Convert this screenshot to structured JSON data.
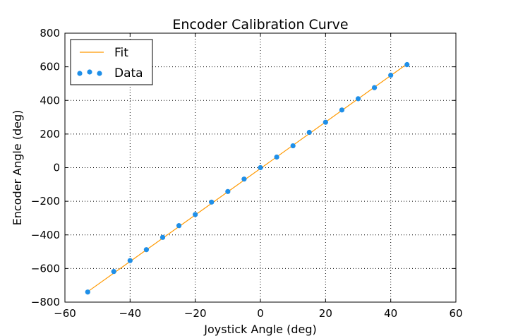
{
  "chart_data": {
    "type": "scatter",
    "title": "Encoder Calibration Curve",
    "xlabel": "Joystick Angle (deg)",
    "ylabel": "Encoder Angle (deg)",
    "xlim": [
      -60,
      60
    ],
    "ylim": [
      -800,
      800
    ],
    "xticks": [
      -60,
      -40,
      -20,
      0,
      20,
      40,
      60
    ],
    "yticks": [
      -800,
      -600,
      -400,
      -200,
      0,
      200,
      400,
      600,
      800
    ],
    "xtick_labels": [
      "−60",
      "−40",
      "−20",
      "0",
      "20",
      "40",
      "60"
    ],
    "ytick_labels": [
      "−800",
      "−600",
      "−400",
      "−200",
      "0",
      "200",
      "400",
      "600",
      "800"
    ],
    "grid": true,
    "legend_position": "top-left",
    "series": [
      {
        "name": "Fit",
        "kind": "line",
        "color": "#ff9900",
        "x": [
          -53,
          45
        ],
        "y": [
          -738,
          617
        ]
      },
      {
        "name": "Data",
        "kind": "scatter",
        "color": "#1f8fe8",
        "x": [
          -53,
          -45,
          -40,
          -35,
          -30,
          -25,
          -20,
          -15,
          -10,
          -5,
          0,
          5,
          10,
          15,
          20,
          25,
          30,
          35,
          40,
          45
        ],
        "y": [
          -740,
          -618,
          -553,
          -488,
          -415,
          -345,
          -279,
          -205,
          -142,
          -68,
          0,
          63,
          130,
          210,
          270,
          343,
          410,
          476,
          550,
          613
        ]
      }
    ]
  }
}
